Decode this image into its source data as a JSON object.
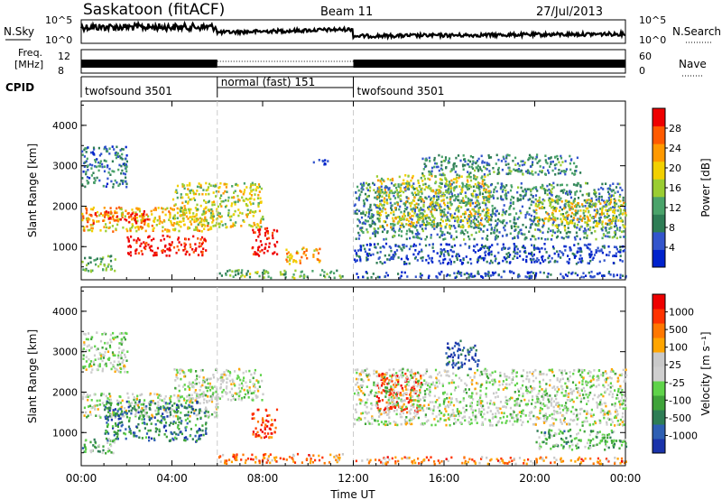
{
  "header": {
    "station": "Saskatoon (fitACF)",
    "beam": "Beam 11",
    "date": "27/Jul/2013"
  },
  "panel_labels": {
    "nsky": "N.Sky",
    "nsearch": "N.Search",
    "freq_line1": "Freq.",
    "freq_line2": "[MHz]",
    "nave": "Nave",
    "cpid": "CPID"
  },
  "noise_axis": {
    "left_ticks": [
      "10^5",
      "10^0"
    ],
    "right_ticks": [
      "10^5",
      "10^0"
    ]
  },
  "freq_axis": {
    "left_ticks": [
      "12",
      "8"
    ],
    "right_ticks": [
      "60",
      "0"
    ]
  },
  "cpid_segments": [
    {
      "label": "twofsound 3501",
      "start_hour": 0,
      "end_hour": 6
    },
    {
      "label": "normal (fast) 151",
      "start_hour": 6,
      "end_hour": 12
    },
    {
      "label": "twofsound 3501",
      "start_hour": 12,
      "end_hour": 24
    }
  ],
  "colors": {
    "power_scale": [
      "#0022cc",
      "#3355cc",
      "#2e7d55",
      "#4aa36a",
      "#9acd32",
      "#f2d000",
      "#ff9900",
      "#ff5a00",
      "#ee0000"
    ],
    "velocity_scale": [
      "#1a33aa",
      "#2e5fb3",
      "#2e7d55",
      "#3fa33a",
      "#5fd34a",
      "#cfcfcf",
      "#c9c9c9",
      "#ffa500",
      "#ff7700",
      "#ff3300",
      "#ee0000"
    ]
  },
  "chart_data": [
    {
      "type": "heatmap",
      "title": "",
      "xlabel": "Time UT",
      "ylabel": "Slant Range [km]",
      "xlim": [
        0,
        24
      ],
      "ylim": [
        180,
        4600
      ],
      "x_ticks": [
        "00:00",
        "04:00",
        "08:00",
        "12:00",
        "16:00",
        "20:00",
        "00:00"
      ],
      "y_ticks": [
        "1000",
        "2000",
        "3000",
        "4000"
      ],
      "colorbar": {
        "label": "Power [dB]",
        "range": [
          0,
          32
        ],
        "ticks": [
          "28",
          "24",
          "20",
          "16",
          "12",
          "8",
          "4"
        ]
      },
      "regions": [
        {
          "t0": 0.0,
          "t1": 6.0,
          "r0": 1400,
          "r1": 2000,
          "level": 0.65
        },
        {
          "t0": 0.2,
          "t1": 3.0,
          "r0": 1600,
          "r1": 1900,
          "level": 0.9
        },
        {
          "t0": 2.0,
          "t1": 5.5,
          "r0": 800,
          "r1": 1300,
          "level": 0.95
        },
        {
          "t0": 0.0,
          "t1": 1.5,
          "r0": 400,
          "r1": 800,
          "level": 0.4
        },
        {
          "t0": 0.0,
          "t1": 2.0,
          "r0": 2500,
          "r1": 3500,
          "level": 0.25
        },
        {
          "t0": 4.0,
          "t1": 8.0,
          "r0": 1500,
          "r1": 2600,
          "level": 0.55
        },
        {
          "t0": 7.5,
          "t1": 8.6,
          "r0": 800,
          "r1": 1500,
          "level": 1.0
        },
        {
          "t0": 6.0,
          "t1": 11.5,
          "r0": 250,
          "r1": 450,
          "level": 0.4
        },
        {
          "t0": 9.0,
          "t1": 10.5,
          "r0": 600,
          "r1": 1000,
          "level": 0.7
        },
        {
          "t0": 10.2,
          "t1": 11.0,
          "r0": 3050,
          "r1": 3200,
          "level": 0.1
        },
        {
          "t0": 12.0,
          "t1": 24.0,
          "r0": 1200,
          "r1": 2600,
          "level": 0.3
        },
        {
          "t0": 13.0,
          "t1": 18.0,
          "r0": 1500,
          "r1": 2800,
          "level": 0.55
        },
        {
          "t0": 12.0,
          "t1": 24.0,
          "r0": 600,
          "r1": 1100,
          "level": 0.15
        },
        {
          "t0": 20.0,
          "t1": 24.0,
          "r0": 1500,
          "r1": 2200,
          "level": 0.6
        },
        {
          "t0": 15.0,
          "t1": 22.0,
          "r0": 2800,
          "r1": 3300,
          "level": 0.3
        },
        {
          "t0": 12.0,
          "t1": 24.0,
          "r0": 250,
          "r1": 420,
          "level": 0.15
        }
      ]
    },
    {
      "type": "heatmap",
      "title": "",
      "xlabel": "Time UT",
      "ylabel": "Slant Range [km]",
      "xlim": [
        0,
        24
      ],
      "ylim": [
        180,
        4600
      ],
      "x_ticks": [
        "00:00",
        "04:00",
        "08:00",
        "12:00",
        "16:00",
        "20:00",
        "00:00"
      ],
      "y_ticks": [
        "1000",
        "2000",
        "3000",
        "4000"
      ],
      "colorbar": {
        "label": "Velocity [m s⁻¹]",
        "range": [
          -1200,
          1200
        ],
        "ticks": [
          "1000",
          "500",
          "100",
          "25",
          "-25",
          "-100",
          "-500",
          "-1000"
        ]
      },
      "regions": [
        {
          "t0": 0.0,
          "t1": 6.0,
          "r0": 1400,
          "r1": 2000,
          "level": 0.5
        },
        {
          "t0": 1.0,
          "t1": 5.5,
          "r0": 800,
          "r1": 1800,
          "level": 0.22
        },
        {
          "t0": 0.0,
          "t1": 1.5,
          "r0": 500,
          "r1": 900,
          "level": 0.35
        },
        {
          "t0": 0.0,
          "t1": 2.0,
          "r0": 2500,
          "r1": 3500,
          "level": 0.5
        },
        {
          "t0": 4.0,
          "t1": 8.0,
          "r0": 1800,
          "r1": 2600,
          "level": 0.5
        },
        {
          "t0": 7.5,
          "t1": 8.6,
          "r0": 900,
          "r1": 1600,
          "level": 0.85
        },
        {
          "t0": 6.0,
          "t1": 11.5,
          "r0": 250,
          "r1": 500,
          "level": 0.75
        },
        {
          "t0": 12.0,
          "t1": 24.0,
          "r0": 250,
          "r1": 420,
          "level": 0.75
        },
        {
          "t0": 13.0,
          "t1": 15.0,
          "r0": 1500,
          "r1": 2500,
          "level": 0.88
        },
        {
          "t0": 12.0,
          "t1": 24.0,
          "r0": 1200,
          "r1": 2600,
          "level": 0.5
        },
        {
          "t0": 20.0,
          "t1": 24.0,
          "r0": 600,
          "r1": 1100,
          "level": 0.35
        },
        {
          "t0": 16.0,
          "t1": 17.5,
          "r0": 2600,
          "r1": 3300,
          "level": 0.1
        }
      ]
    }
  ]
}
